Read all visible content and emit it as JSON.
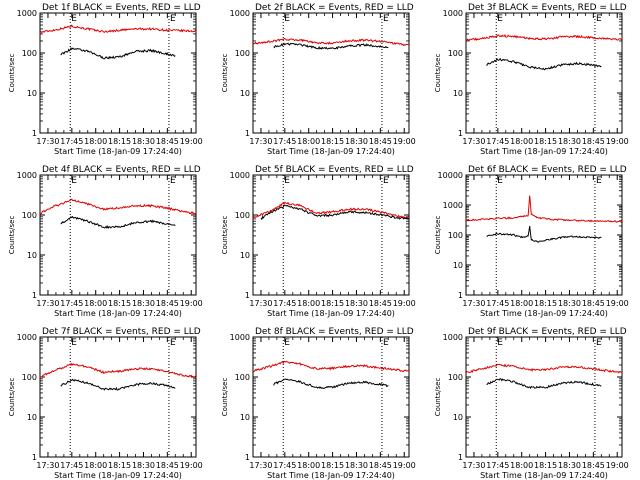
{
  "figure": {
    "background": "#ffffff",
    "axis_color": "#000000",
    "events_color": "#000000",
    "lld_color": "#e00000"
  },
  "chart_data": [
    {
      "type": "line",
      "title": "Det 1f BLACK = Events, RED = LLD",
      "xlabel": "Start Time (18-Jan-09 17:24:40)",
      "ylabel": "Counts/sec",
      "xscale": "time",
      "yscale": "log",
      "xlim": [
        "17:25",
        "19:03"
      ],
      "ylim": [
        1,
        1000
      ],
      "x_ticks": [
        "17:30",
        "17:45",
        "18:00",
        "18:15",
        "18:30",
        "18:45",
        "19:00"
      ],
      "y_ticks": [
        "1",
        "10",
        "100",
        "1000"
      ],
      "markers": [
        {
          "label": "E",
          "time": "17:44"
        },
        {
          "label": "E",
          "time": "18:46"
        }
      ],
      "series": [
        {
          "key": "LLD",
          "x": [
            "17:25",
            "17:35",
            "17:45",
            "17:55",
            "18:05",
            "18:15",
            "18:25",
            "18:35",
            "18:45",
            "18:55",
            "19:03"
          ],
          "values": [
            330,
            380,
            470,
            400,
            340,
            370,
            400,
            400,
            370,
            360,
            350
          ]
        },
        {
          "key": "Events",
          "x": [
            "17:38",
            "17:45",
            "17:55",
            "18:05",
            "18:15",
            "18:25",
            "18:35",
            "18:45",
            "18:50"
          ],
          "values": [
            90,
            130,
            110,
            75,
            80,
            110,
            115,
            95,
            85
          ]
        }
      ]
    },
    {
      "type": "line",
      "title": "Det 2f BLACK = Events, RED = LLD",
      "xlabel": "Start Time (18-Jan-09 17:24:40)",
      "ylabel": "Counts/sec",
      "xscale": "time",
      "yscale": "log",
      "xlim": [
        "17:25",
        "19:03"
      ],
      "ylim": [
        1,
        1000
      ],
      "x_ticks": [
        "17:30",
        "17:45",
        "18:00",
        "18:15",
        "18:30",
        "18:45",
        "19:00"
      ],
      "y_ticks": [
        "1",
        "10",
        "100",
        "1000"
      ],
      "markers": [
        {
          "label": "E",
          "time": "17:44"
        },
        {
          "label": "E",
          "time": "18:46"
        }
      ],
      "series": [
        {
          "key": "LLD",
          "x": [
            "17:25",
            "17:35",
            "17:45",
            "17:55",
            "18:05",
            "18:15",
            "18:25",
            "18:35",
            "18:45",
            "18:55",
            "19:03"
          ],
          "values": [
            170,
            190,
            220,
            210,
            180,
            175,
            200,
            210,
            195,
            170,
            160
          ]
        },
        {
          "key": "Events",
          "x": [
            "17:38",
            "17:45",
            "17:55",
            "18:05",
            "18:15",
            "18:25",
            "18:35",
            "18:45",
            "18:50"
          ],
          "values": [
            140,
            170,
            160,
            135,
            130,
            150,
            160,
            145,
            140
          ]
        }
      ]
    },
    {
      "type": "line",
      "title": "Det 3f BLACK = Events, RED = LLD",
      "xlabel": "Start Time (18-Jan-09 17:24:40)",
      "ylabel": "Counts/sec",
      "xscale": "time",
      "yscale": "log",
      "xlim": [
        "17:25",
        "19:03"
      ],
      "ylim": [
        1,
        1000
      ],
      "x_ticks": [
        "17:30",
        "17:45",
        "18:00",
        "18:15",
        "18:30",
        "18:45",
        "19:00"
      ],
      "y_ticks": [
        "1",
        "10",
        "100",
        "1000"
      ],
      "markers": [
        {
          "label": "E",
          "time": "17:44"
        },
        {
          "label": "E",
          "time": "18:46"
        }
      ],
      "series": [
        {
          "key": "LLD",
          "x": [
            "17:25",
            "17:35",
            "17:45",
            "17:55",
            "18:05",
            "18:15",
            "18:25",
            "18:35",
            "18:45",
            "18:55",
            "19:03"
          ],
          "values": [
            210,
            230,
            270,
            260,
            230,
            225,
            250,
            260,
            240,
            225,
            215
          ]
        },
        {
          "key": "Events",
          "x": [
            "17:38",
            "17:45",
            "17:55",
            "18:05",
            "18:15",
            "18:25",
            "18:35",
            "18:45",
            "18:50"
          ],
          "values": [
            50,
            70,
            60,
            45,
            40,
            50,
            55,
            50,
            45
          ]
        }
      ]
    },
    {
      "type": "line",
      "title": "Det 4f BLACK = Events, RED = LLD",
      "xlabel": "Start Time (18-Jan-09 17:24:40)",
      "ylabel": "Counts/sec",
      "xscale": "time",
      "yscale": "log",
      "xlim": [
        "17:25",
        "19:03"
      ],
      "ylim": [
        1,
        1000
      ],
      "x_ticks": [
        "17:30",
        "17:45",
        "18:00",
        "18:15",
        "18:30",
        "18:45",
        "19:00"
      ],
      "y_ticks": [
        "1",
        "10",
        "100",
        "1000"
      ],
      "markers": [
        {
          "label": "E",
          "time": "17:44"
        },
        {
          "label": "E",
          "time": "18:46"
        }
      ],
      "series": [
        {
          "key": "LLD",
          "x": [
            "17:25",
            "17:35",
            "17:45",
            "17:55",
            "18:05",
            "18:15",
            "18:25",
            "18:35",
            "18:45",
            "18:55",
            "19:03"
          ],
          "values": [
            110,
            170,
            240,
            190,
            140,
            150,
            170,
            170,
            150,
            120,
            110
          ]
        },
        {
          "key": "Events",
          "x": [
            "17:38",
            "17:45",
            "17:55",
            "18:05",
            "18:15",
            "18:25",
            "18:35",
            "18:45",
            "18:50"
          ],
          "values": [
            60,
            90,
            70,
            50,
            50,
            65,
            70,
            60,
            55
          ]
        }
      ]
    },
    {
      "type": "line",
      "title": "Det 5f BLACK = Events, RED = LLD",
      "xlabel": "Start Time (18-Jan-09 17:24:40)",
      "ylabel": "Counts/sec",
      "xscale": "time",
      "yscale": "log",
      "xlim": [
        "17:25",
        "19:03"
      ],
      "ylim": [
        1,
        1000
      ],
      "x_ticks": [
        "17:30",
        "17:45",
        "18:00",
        "18:15",
        "18:30",
        "18:45",
        "19:00"
      ],
      "y_ticks": [
        "1",
        "10",
        "100",
        "1000"
      ],
      "markers": [
        {
          "label": "E",
          "time": "17:44"
        },
        {
          "label": "E",
          "time": "18:46"
        }
      ],
      "series": [
        {
          "key": "LLD",
          "x": [
            "17:25",
            "17:35",
            "17:45",
            "17:55",
            "18:05",
            "18:15",
            "18:25",
            "18:35",
            "18:45",
            "18:55",
            "19:03"
          ],
          "values": [
            85,
            120,
            200,
            170,
            110,
            120,
            140,
            140,
            120,
            95,
            85
          ]
        },
        {
          "key": "Events",
          "x": [
            "17:30",
            "17:35",
            "17:45",
            "17:55",
            "18:05",
            "18:15",
            "18:25",
            "18:35",
            "18:45",
            "18:55",
            "19:03"
          ],
          "values": [
            80,
            110,
            170,
            140,
            95,
            100,
            120,
            115,
            100,
            85,
            80
          ]
        }
      ]
    },
    {
      "type": "line",
      "title": "Det 6f BLACK = Events, RED = LLD",
      "xlabel": "Start Time (18-Jan-09 17:24:40)",
      "ylabel": "Counts/sec",
      "xscale": "time",
      "yscale": "log",
      "xlim": [
        "17:25",
        "19:03"
      ],
      "ylim": [
        1,
        10000
      ],
      "x_ticks": [
        "17:30",
        "17:45",
        "18:00",
        "18:15",
        "18:30",
        "18:45",
        "19:00"
      ],
      "y_ticks": [
        "1",
        "10",
        "100",
        "1000",
        "10000"
      ],
      "markers": [
        {
          "label": "E",
          "time": "17:44"
        },
        {
          "label": "E",
          "time": "18:46"
        }
      ],
      "series": [
        {
          "key": "LLD",
          "x": [
            "17:25",
            "17:35",
            "17:45",
            "17:55",
            "18:04",
            "18:05",
            "18:06",
            "18:10",
            "18:20",
            "18:30",
            "18:40",
            "18:50",
            "19:03"
          ],
          "values": [
            310,
            330,
            360,
            370,
            450,
            2000,
            500,
            380,
            330,
            310,
            300,
            290,
            280
          ]
        },
        {
          "key": "Events",
          "x": [
            "17:38",
            "17:45",
            "17:55",
            "18:00",
            "18:04",
            "18:05",
            "18:06",
            "18:10",
            "18:20",
            "18:30",
            "18:40",
            "18:50"
          ],
          "values": [
            90,
            110,
            100,
            85,
            90,
            200,
            70,
            60,
            75,
            90,
            85,
            80
          ]
        }
      ]
    },
    {
      "type": "line",
      "title": "Det 7f BLACK = Events, RED = LLD",
      "xlabel": "Start Time (18-Jan-09 17:24:40)",
      "ylabel": "Counts/sec",
      "xscale": "time",
      "yscale": "log",
      "xlim": [
        "17:25",
        "19:03"
      ],
      "ylim": [
        1,
        1000
      ],
      "x_ticks": [
        "17:30",
        "17:45",
        "18:00",
        "18:15",
        "18:30",
        "18:45",
        "19:00"
      ],
      "y_ticks": [
        "1",
        "10",
        "100",
        "1000"
      ],
      "markers": [
        {
          "label": "E",
          "time": "17:44"
        },
        {
          "label": "E",
          "time": "18:46"
        }
      ],
      "series": [
        {
          "key": "LLD",
          "x": [
            "17:25",
            "17:35",
            "17:45",
            "17:55",
            "18:05",
            "18:15",
            "18:25",
            "18:35",
            "18:45",
            "18:55",
            "19:03"
          ],
          "values": [
            100,
            150,
            210,
            180,
            130,
            140,
            160,
            160,
            140,
            110,
            100
          ]
        },
        {
          "key": "Events",
          "x": [
            "17:38",
            "17:45",
            "17:55",
            "18:05",
            "18:15",
            "18:25",
            "18:35",
            "18:45",
            "18:50"
          ],
          "values": [
            60,
            85,
            70,
            50,
            50,
            65,
            70,
            60,
            55
          ]
        }
      ]
    },
    {
      "type": "line",
      "title": "Det 8f BLACK = Events, RED = LLD",
      "xlabel": "Start Time (18-Jan-09 17:24:40)",
      "ylabel": "Counts/sec",
      "xscale": "time",
      "yscale": "log",
      "xlim": [
        "17:25",
        "19:03"
      ],
      "ylim": [
        1,
        1000
      ],
      "x_ticks": [
        "17:30",
        "17:45",
        "18:00",
        "18:15",
        "18:30",
        "18:45",
        "19:00"
      ],
      "y_ticks": [
        "1",
        "10",
        "100",
        "1000"
      ],
      "markers": [
        {
          "label": "E",
          "time": "17:44"
        },
        {
          "label": "E",
          "time": "18:46"
        }
      ],
      "series": [
        {
          "key": "LLD",
          "x": [
            "17:25",
            "17:35",
            "17:45",
            "17:55",
            "18:05",
            "18:15",
            "18:25",
            "18:35",
            "18:45",
            "18:55",
            "19:03"
          ],
          "values": [
            140,
            180,
            240,
            210,
            160,
            165,
            185,
            190,
            170,
            150,
            140
          ]
        },
        {
          "key": "Events",
          "x": [
            "17:38",
            "17:45",
            "17:55",
            "18:05",
            "18:15",
            "18:25",
            "18:35",
            "18:45",
            "18:50"
          ],
          "values": [
            65,
            90,
            75,
            55,
            55,
            70,
            75,
            65,
            60
          ]
        }
      ]
    },
    {
      "type": "line",
      "title": "Det 9f BLACK = Events, RED = LLD",
      "xlabel": "Start Time (18-Jan-09 17:24:40)",
      "ylabel": "Counts/sec",
      "xscale": "time",
      "yscale": "log",
      "xlim": [
        "17:25",
        "19:03"
      ],
      "ylim": [
        1,
        1000
      ],
      "x_ticks": [
        "17:30",
        "17:45",
        "18:00",
        "18:15",
        "18:30",
        "18:45",
        "19:00"
      ],
      "y_ticks": [
        "1",
        "10",
        "100",
        "1000"
      ],
      "markers": [
        {
          "label": "E",
          "time": "17:44"
        },
        {
          "label": "E",
          "time": "18:46"
        }
      ],
      "series": [
        {
          "key": "LLD",
          "x": [
            "17:25",
            "17:35",
            "17:45",
            "17:55",
            "18:05",
            "18:15",
            "18:25",
            "18:35",
            "18:45",
            "18:55",
            "19:03"
          ],
          "values": [
            130,
            160,
            200,
            185,
            150,
            155,
            175,
            180,
            160,
            140,
            130
          ]
        },
        {
          "key": "Events",
          "x": [
            "17:38",
            "17:45",
            "17:55",
            "18:05",
            "18:15",
            "18:25",
            "18:35",
            "18:45",
            "18:50"
          ],
          "values": [
            65,
            90,
            75,
            55,
            55,
            70,
            75,
            65,
            60
          ]
        }
      ]
    }
  ]
}
